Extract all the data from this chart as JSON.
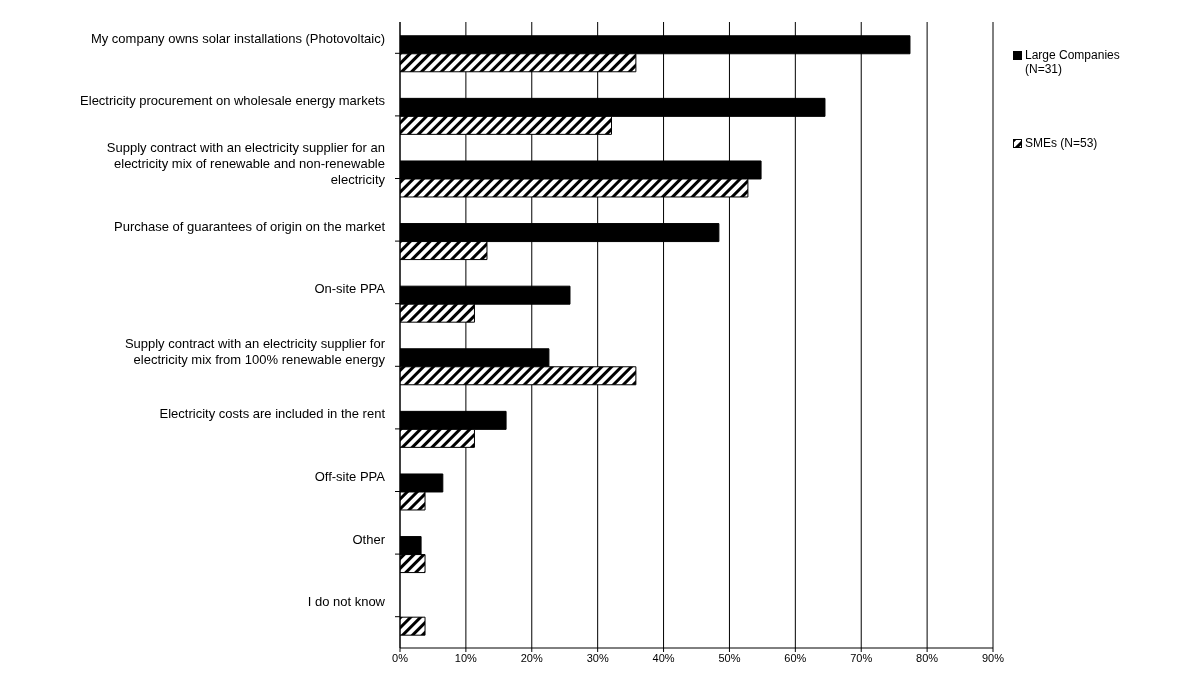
{
  "chart_data": {
    "type": "bar",
    "orientation": "horizontal",
    "categories": [
      "My company owns solar installations (Photovoltaic)",
      "Electricity procurement on wholesale energy markets",
      "Supply contract with an electricity supplier for an electricity mix of renewable and non-renewable electricity",
      "Purchase of guarantees of origin on the market",
      "On-site PPA",
      "Supply contract with an electricity supplier for electricity mix from 100% renewable energy",
      "Electricity costs are included in the rent",
      "Off-site PPA",
      "Other",
      "I do not know"
    ],
    "series": [
      {
        "name": "Large Companies (N=31)",
        "color": "#000000",
        "values": [
          77.4,
          64.5,
          54.8,
          48.4,
          25.8,
          22.6,
          16.1,
          6.5,
          3.2,
          0
        ]
      },
      {
        "name": "SMEs (N=53)",
        "color": "#000000",
        "values": [
          35.8,
          32.1,
          52.8,
          13.2,
          11.3,
          35.8,
          11.3,
          3.8,
          3.8,
          3.8
        ]
      }
    ],
    "xlim": [
      0,
      90
    ],
    "xticks": [
      {
        "value": 0,
        "label": "0%"
      },
      {
        "value": 10,
        "label": "10%"
      },
      {
        "value": 20,
        "label": "20%"
      },
      {
        "value": 30,
        "label": "30%"
      },
      {
        "value": 40,
        "label": "40%"
      },
      {
        "value": 50,
        "label": "50%"
      },
      {
        "value": 60,
        "label": "60%"
      },
      {
        "value": 70,
        "label": "70%"
      },
      {
        "value": 80,
        "label": "80%"
      },
      {
        "value": 90,
        "label": "90%"
      }
    ],
    "grid": "x",
    "legend": "top right"
  }
}
